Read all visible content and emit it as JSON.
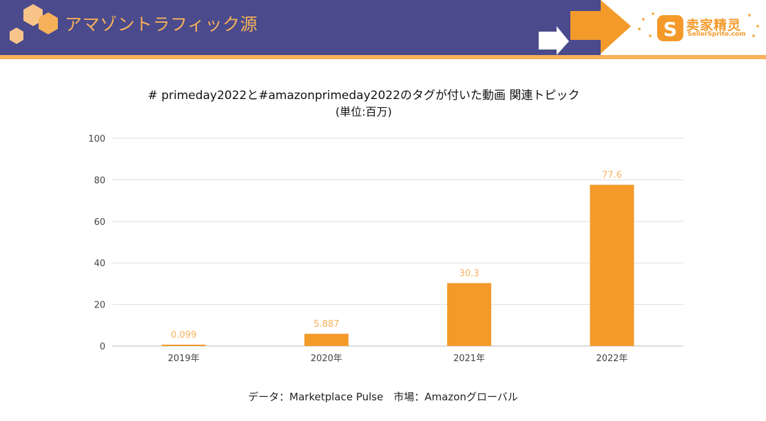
{
  "header": {
    "title": "アマゾントラフィック源",
    "accent_color": "#f6b15a",
    "background_color": "#4a4a8c"
  },
  "brand": {
    "name": "卖家精灵",
    "url": "SellerSprite.com",
    "color": "#f39a2b"
  },
  "chart_data": {
    "type": "bar",
    "title": "# primeday2022と#amazonprimeday2022のタグが付いた動画 関連トピック",
    "subtitle": "(単位:百万)",
    "categories": [
      "2019年",
      "2020年",
      "2021年",
      "2022年"
    ],
    "values": [
      0.099,
      5.887,
      30.3,
      77.6
    ],
    "value_labels": [
      "0.099",
      "5.887",
      "30.3",
      "77.6"
    ],
    "ylim": [
      0,
      100
    ],
    "yticks": [
      0,
      20,
      40,
      60,
      80,
      100
    ],
    "grid": true,
    "bar_color": "#f39a2b",
    "label_color": "#f6b15a"
  },
  "source": "データ：Marketplace Pulse　市場：Amazonグローバル"
}
